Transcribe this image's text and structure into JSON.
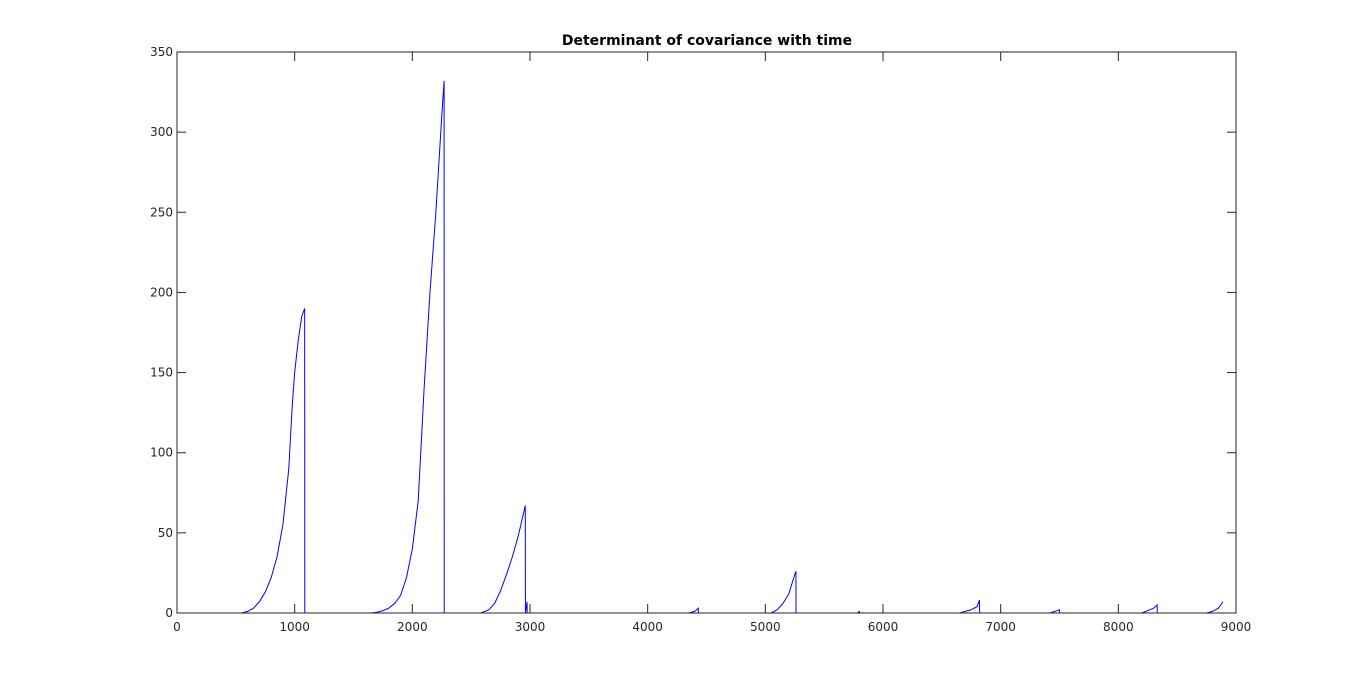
{
  "chart_data": {
    "type": "line",
    "title": "Determinant of covariance with time",
    "xlabel": "",
    "ylabel": "",
    "xlim": [
      0,
      9000
    ],
    "ylim": [
      0,
      350
    ],
    "xticks": [
      0,
      1000,
      2000,
      3000,
      4000,
      5000,
      6000,
      7000,
      8000,
      9000
    ],
    "yticks": [
      0,
      50,
      100,
      150,
      200,
      250,
      300,
      350
    ],
    "grid": false,
    "legend": "none",
    "series": [
      {
        "color": "#0000ff",
        "x": [
          0,
          550,
          600,
          650,
          700,
          750,
          800,
          850,
          900,
          950,
          980,
          1000,
          1030,
          1060,
          1085,
          1086,
          1650,
          1700,
          1750,
          1800,
          1850,
          1900,
          1950,
          2000,
          2050,
          2100,
          2150,
          2200,
          2250,
          2270,
          2271,
          2580,
          2650,
          2700,
          2750,
          2800,
          2850,
          2900,
          2960,
          2961,
          2975,
          2976,
          3900,
          3901,
          4350,
          4400,
          4430,
          4431,
          5050,
          5100,
          5150,
          5200,
          5250,
          5260,
          5261,
          5780,
          5800,
          5801,
          6650,
          6750,
          6800,
          6820,
          6821,
          7420,
          7500,
          7501,
          8200,
          8300,
          8330,
          8331,
          8750,
          8800,
          8850,
          8880,
          8890
        ],
        "y": [
          0,
          0,
          1,
          3,
          7,
          13,
          22,
          35,
          55,
          90,
          130,
          150,
          170,
          185,
          190,
          0,
          0,
          0.5,
          1.5,
          3,
          6,
          11,
          22,
          40,
          70,
          140,
          200,
          250,
          310,
          332,
          0,
          0,
          2,
          6,
          14,
          24,
          35,
          48,
          67,
          0,
          7,
          0,
          0,
          0,
          0,
          1,
          3,
          0,
          0,
          2,
          6,
          12,
          24,
          26,
          0,
          0,
          1,
          0,
          0,
          2,
          4,
          8,
          0,
          0,
          2,
          0,
          0,
          3,
          5,
          0,
          0,
          1,
          3,
          6,
          7
        ]
      }
    ]
  }
}
